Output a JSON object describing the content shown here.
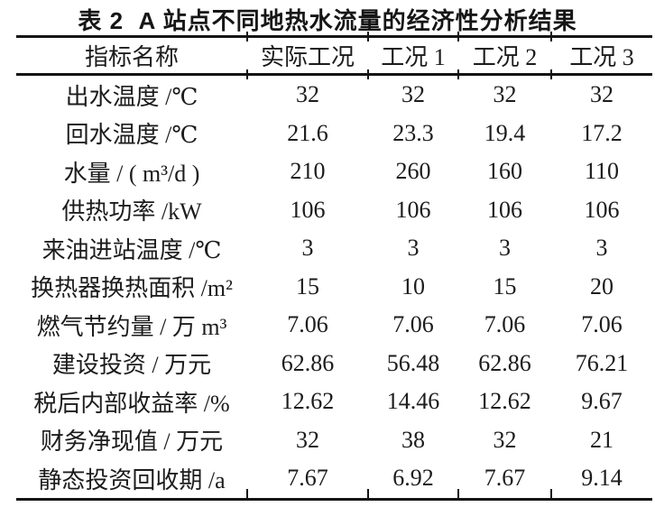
{
  "title": "表 2  A 站点不同地热水流量的经济性分析结果",
  "table": {
    "columns": [
      "指标名称",
      "实际工况",
      "工况 1",
      "工况 2",
      "工况 3"
    ],
    "rows": [
      {
        "label": "出水温度 /℃",
        "values": [
          "32",
          "32",
          "32",
          "32"
        ]
      },
      {
        "label": "回水温度 /℃",
        "values": [
          "21.6",
          "23.3",
          "19.4",
          "17.2"
        ]
      },
      {
        "label": "水量 / ( m³/d )",
        "values": [
          "210",
          "260",
          "160",
          "110"
        ]
      },
      {
        "label": "供热功率 /kW",
        "values": [
          "106",
          "106",
          "106",
          "106"
        ]
      },
      {
        "label": "来油进站温度 /℃",
        "values": [
          "3",
          "3",
          "3",
          "3"
        ]
      },
      {
        "label": "换热器换热面积 /m²",
        "values": [
          "15",
          "10",
          "15",
          "20"
        ]
      },
      {
        "label": "燃气节约量 / 万 m³",
        "values": [
          "7.06",
          "7.06",
          "7.06",
          "7.06"
        ]
      },
      {
        "label": "建设投资 / 万元",
        "values": [
          "62.86",
          "56.48",
          "62.86",
          "76.21"
        ]
      },
      {
        "label": "税后内部收益率 /%",
        "values": [
          "12.62",
          "14.46",
          "12.62",
          "9.67"
        ]
      },
      {
        "label": "财务净现值 / 万元",
        "values": [
          "32",
          "38",
          "32",
          "21"
        ]
      },
      {
        "label": "静态投资回收期 /a",
        "values": [
          "7.67",
          "6.92",
          "7.67",
          "9.14"
        ]
      }
    ]
  },
  "colors": {
    "background": "#ffffff",
    "text": "#1c1c1c",
    "rule": "#141414"
  }
}
